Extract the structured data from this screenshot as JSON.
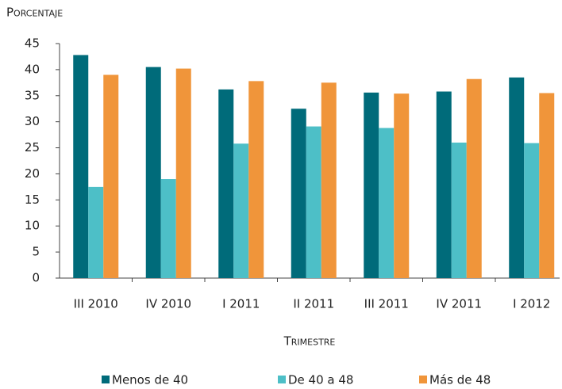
{
  "chart_data": {
    "type": "bar",
    "y_label": "Porcentaje",
    "x_label": "Trimestre",
    "categories": [
      "III 2010",
      "IV 2010",
      "I 2011",
      "II 2011",
      "III 2011",
      "IV 2011",
      "I 2012"
    ],
    "series": [
      {
        "name": "Menos de 40",
        "color": "#006b7a",
        "values": [
          42.8,
          40.5,
          36.2,
          32.5,
          35.6,
          35.8,
          38.5
        ]
      },
      {
        "name": "De 40 a 48",
        "color": "#4dbfc7",
        "values": [
          17.5,
          19.0,
          25.8,
          29.1,
          28.8,
          26.0,
          25.9
        ]
      },
      {
        "name": "Más de 48",
        "color": "#f0953a",
        "values": [
          39.0,
          40.2,
          37.8,
          37.5,
          35.4,
          38.2,
          35.5
        ]
      }
    ],
    "ylim": [
      0,
      45
    ],
    "yticks": [
      0,
      5,
      10,
      15,
      20,
      25,
      30,
      35,
      40,
      45
    ],
    "grid": false,
    "legend": "bottom"
  }
}
